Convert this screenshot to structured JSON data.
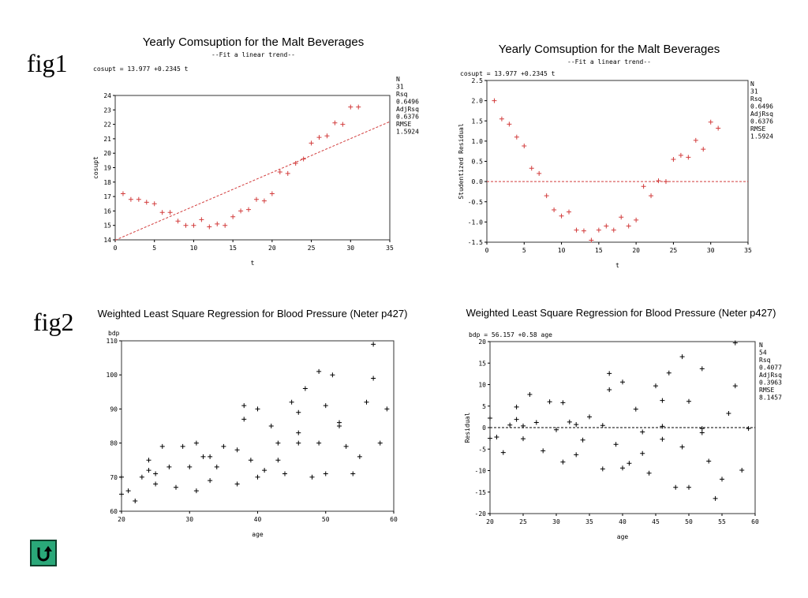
{
  "labels": {
    "fig1": "fig1",
    "fig2": "fig2"
  },
  "nav": {
    "icon": "u-turn-arrow-icon"
  },
  "colors": {
    "data": "#d23c3c",
    "ink": "#000000",
    "frame": "#333333"
  },
  "chart_data": [
    {
      "type": "scatter",
      "title": "Yearly Comsuption for the Malt Beverages",
      "subtitle": "--Fit a linear trend--",
      "equation": "cosupt = 13.977 +0.2345 t",
      "xlabel": "t",
      "ylabel": "cosupt",
      "xlim": [
        0,
        35
      ],
      "ylim": [
        14,
        24
      ],
      "xticks": [
        0,
        5,
        10,
        15,
        20,
        25,
        30,
        35
      ],
      "yticks": [
        14,
        15,
        16,
        17,
        18,
        19,
        20,
        21,
        22,
        23,
        24
      ],
      "marker": "+",
      "marker_color": "#d23c3c",
      "fit_line": {
        "intercept": 13.977,
        "slope": 0.2345,
        "style": "dashed",
        "color": "#d23c3c"
      },
      "stats": [
        "N",
        "31",
        "Rsq",
        "0.6496",
        "AdjRsq",
        "0.6376",
        "RMSE",
        "1.5924"
      ],
      "points": [
        [
          1,
          17.2
        ],
        [
          2,
          16.8
        ],
        [
          3,
          16.8
        ],
        [
          4,
          16.6
        ],
        [
          5,
          16.5
        ],
        [
          6,
          15.9
        ],
        [
          7,
          15.9
        ],
        [
          8,
          15.3
        ],
        [
          9,
          15.0
        ],
        [
          10,
          15.0
        ],
        [
          11,
          15.4
        ],
        [
          12,
          14.9
        ],
        [
          13,
          15.1
        ],
        [
          14,
          15.0
        ],
        [
          15,
          15.6
        ],
        [
          16,
          16.0
        ],
        [
          17,
          16.1
        ],
        [
          18,
          16.8
        ],
        [
          19,
          16.7
        ],
        [
          20,
          17.2
        ],
        [
          21,
          18.7
        ],
        [
          22,
          18.6
        ],
        [
          23,
          19.3
        ],
        [
          24,
          19.6
        ],
        [
          25,
          20.7
        ],
        [
          26,
          21.1
        ],
        [
          27,
          21.2
        ],
        [
          28,
          22.1
        ],
        [
          29,
          22.0
        ],
        [
          30,
          23.2
        ],
        [
          31,
          23.2
        ]
      ]
    },
    {
      "type": "scatter",
      "title": "Yearly Comsuption for the Malt Beverages",
      "subtitle": "--Fit a linear trend--",
      "equation": "cosupt = 13.977 +0.2345 t",
      "xlabel": "t",
      "ylabel": "Studentized Residual",
      "xlim": [
        0,
        35
      ],
      "ylim": [
        -1.5,
        2.5
      ],
      "xticks": [
        0,
        5,
        10,
        15,
        20,
        25,
        30,
        35
      ],
      "yticks": [
        -1.5,
        -1.0,
        -0.5,
        0.0,
        0.5,
        1.0,
        1.5,
        2.0,
        2.5
      ],
      "marker": "+",
      "marker_color": "#d23c3c",
      "ref_line": {
        "y": 0,
        "style": "dashed",
        "color": "#d23c3c"
      },
      "stats": [
        "N",
        "31",
        "Rsq",
        "0.6496",
        "AdjRsq",
        "0.6376",
        "RMSE",
        "1.5924"
      ],
      "points": [
        [
          1,
          2.0
        ],
        [
          2,
          1.55
        ],
        [
          3,
          1.42
        ],
        [
          4,
          1.1
        ],
        [
          5,
          0.88
        ],
        [
          6,
          0.33
        ],
        [
          7,
          0.2
        ],
        [
          8,
          -0.35
        ],
        [
          9,
          -0.7
        ],
        [
          10,
          -0.85
        ],
        [
          11,
          -0.75
        ],
        [
          12,
          -1.2
        ],
        [
          13,
          -1.22
        ],
        [
          14,
          -1.45
        ],
        [
          15,
          -1.2
        ],
        [
          16,
          -1.1
        ],
        [
          17,
          -1.2
        ],
        [
          18,
          -0.88
        ],
        [
          19,
          -1.1
        ],
        [
          20,
          -0.95
        ],
        [
          21,
          -0.12
        ],
        [
          22,
          -0.35
        ],
        [
          23,
          0.02
        ],
        [
          24,
          0.0
        ],
        [
          25,
          0.55
        ],
        [
          26,
          0.65
        ],
        [
          27,
          0.6
        ],
        [
          28,
          1.02
        ],
        [
          29,
          0.8
        ],
        [
          30,
          1.47
        ],
        [
          31,
          1.32
        ]
      ]
    },
    {
      "type": "scatter",
      "title": "Weighted Least Square Regression for Blood Pressure (Neter p427)",
      "equation": "",
      "xlabel": "age",
      "ylabel": "bdp",
      "xlim": [
        20,
        60
      ],
      "ylim": [
        60,
        110
      ],
      "xticks": [
        20,
        30,
        40,
        50,
        60
      ],
      "yticks": [
        60,
        70,
        80,
        90,
        100,
        110
      ],
      "marker": "+",
      "marker_color": "#000000",
      "stats": [],
      "points": [
        [
          20,
          65
        ],
        [
          20,
          70
        ],
        [
          21,
          66
        ],
        [
          22,
          63
        ],
        [
          23,
          70
        ],
        [
          24,
          72
        ],
        [
          24,
          75
        ],
        [
          25,
          68
        ],
        [
          25,
          71
        ],
        [
          26,
          79
        ],
        [
          27,
          73
        ],
        [
          28,
          67
        ],
        [
          29,
          79
        ],
        [
          30,
          73
        ],
        [
          31,
          66
        ],
        [
          31,
          80
        ],
        [
          32,
          76
        ],
        [
          33,
          69
        ],
        [
          33,
          76
        ],
        [
          34,
          73
        ],
        [
          35,
          79
        ],
        [
          37,
          68
        ],
        [
          37,
          78
        ],
        [
          38,
          87
        ],
        [
          38,
          91
        ],
        [
          39,
          75
        ],
        [
          40,
          70
        ],
        [
          40,
          90
        ],
        [
          41,
          72
        ],
        [
          42,
          85
        ],
        [
          43,
          75
        ],
        [
          43,
          80
        ],
        [
          44,
          71
        ],
        [
          45,
          92
        ],
        [
          46,
          80
        ],
        [
          46,
          83
        ],
        [
          46,
          89
        ],
        [
          47,
          96
        ],
        [
          48,
          70
        ],
        [
          49,
          80
        ],
        [
          49,
          101
        ],
        [
          50,
          71
        ],
        [
          50,
          91
        ],
        [
          51,
          100
        ],
        [
          52,
          85
        ],
        [
          52,
          86
        ],
        [
          53,
          79
        ],
        [
          54,
          71
        ],
        [
          55,
          76
        ],
        [
          56,
          92
        ],
        [
          57,
          99
        ],
        [
          57,
          109
        ],
        [
          58,
          80
        ],
        [
          59,
          90
        ]
      ]
    },
    {
      "type": "scatter",
      "title": "Weighted Least Square Regression for Blood Pressure (Neter p427)",
      "equation": "bdp = 56.157 +0.58 age",
      "xlabel": "age",
      "ylabel": "Residual",
      "xlim": [
        20,
        60
      ],
      "ylim": [
        -20,
        20
      ],
      "xticks": [
        20,
        25,
        30,
        35,
        40,
        45,
        50,
        55,
        60
      ],
      "yticks": [
        -20,
        -15,
        -10,
        -5,
        0,
        5,
        10,
        15,
        20
      ],
      "marker": "+",
      "marker_color": "#000000",
      "ref_line": {
        "y": 0,
        "style": "dashed",
        "color": "#000000"
      },
      "stats": [
        "N",
        "54",
        "Rsq",
        "0.4077",
        "AdjRsq",
        "0.3963",
        "RMSE",
        "8.1457"
      ],
      "points": [
        [
          20,
          2.2
        ],
        [
          20,
          -2.5
        ],
        [
          21,
          -2.2
        ],
        [
          22,
          -5.8
        ],
        [
          23,
          0.6
        ],
        [
          24,
          1.9
        ],
        [
          24,
          4.8
        ],
        [
          25,
          -2.6
        ],
        [
          25,
          0.4
        ],
        [
          26,
          7.7
        ],
        [
          27,
          1.2
        ],
        [
          28,
          -5.4
        ],
        [
          29,
          6.0
        ],
        [
          30,
          -0.5
        ],
        [
          31,
          -8.0
        ],
        [
          31,
          5.8
        ],
        [
          32,
          1.3
        ],
        [
          33,
          -6.3
        ],
        [
          33,
          0.7
        ],
        [
          34,
          -2.9
        ],
        [
          35,
          2.5
        ],
        [
          37,
          -9.6
        ],
        [
          37,
          0.5
        ],
        [
          38,
          8.8
        ],
        [
          38,
          12.6
        ],
        [
          39,
          -3.9
        ],
        [
          40,
          -9.4
        ],
        [
          40,
          10.6
        ],
        [
          41,
          -8.3
        ],
        [
          42,
          4.3
        ],
        [
          43,
          -6.0
        ],
        [
          43,
          -1.0
        ],
        [
          44,
          -10.6
        ],
        [
          45,
          9.7
        ],
        [
          46,
          -2.7
        ],
        [
          46,
          0.3
        ],
        [
          46,
          6.3
        ],
        [
          47,
          12.7
        ],
        [
          48,
          -13.9
        ],
        [
          49,
          -4.5
        ],
        [
          49,
          16.5
        ],
        [
          50,
          -13.9
        ],
        [
          50,
          6.1
        ],
        [
          52,
          13.7
        ],
        [
          52,
          -1.2
        ],
        [
          52,
          -0.2
        ],
        [
          53,
          -7.8
        ],
        [
          55,
          -12.0
        ],
        [
          54,
          -16.5
        ],
        [
          56,
          3.3
        ],
        [
          57,
          19.7
        ],
        [
          57,
          9.7
        ],
        [
          58,
          -9.9
        ],
        [
          59,
          -0.2
        ]
      ]
    }
  ]
}
